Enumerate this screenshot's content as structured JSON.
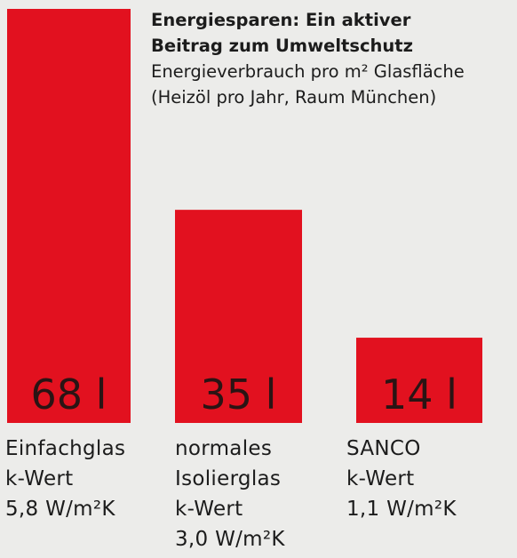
{
  "title": {
    "line1": "Energiesparen: Ein aktiver",
    "line2": "Beitrag zum Umweltschutz",
    "subtitle1": "Energieverbrauch pro m² Glasfläche",
    "subtitle2": "(Heizöl pro Jahr, Raum München)"
  },
  "colors": {
    "bar": "#e2111f",
    "background": "#ececea",
    "value_text": "#2a1414"
  },
  "chart_data": {
    "type": "bar",
    "title": "Energiesparen: Ein aktiver Beitrag zum Umweltschutz",
    "subtitle": "Energieverbrauch pro m² Glasfläche (Heizöl pro Jahr, Raum München)",
    "categories": [
      "Einfachglas",
      "normales Isolierglas",
      "SANCO"
    ],
    "values": [
      68,
      35,
      14
    ],
    "value_labels": [
      "68 l",
      "35 l",
      "14 l"
    ],
    "category_labels": [
      [
        "Einfachglas",
        "k-Wert",
        "5,8 W/m²K"
      ],
      [
        "normales",
        "Isolierglas",
        "k-Wert",
        "3,0 W/m²K"
      ],
      [
        "SANCO",
        "k-Wert",
        "1,1 W/m²K"
      ]
    ],
    "xlabel": "",
    "ylabel": "",
    "ylim": [
      0,
      68
    ],
    "grid": false,
    "legend": "none"
  }
}
